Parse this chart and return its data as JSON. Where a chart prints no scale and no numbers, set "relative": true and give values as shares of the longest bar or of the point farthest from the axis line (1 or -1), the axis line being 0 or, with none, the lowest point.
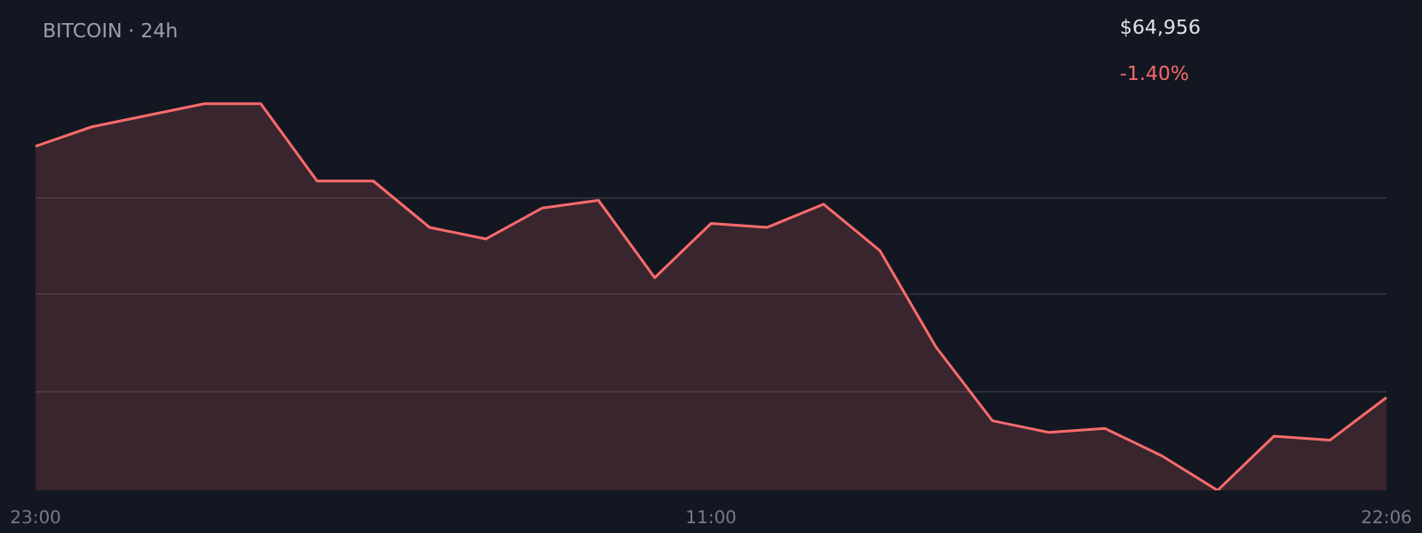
{
  "chart_data": {
    "type": "area",
    "title": "BITCOIN · 24h",
    "annotations": [
      "$64,956",
      "-1.40%"
    ],
    "relative": true,
    "grid": "y",
    "legend": false,
    "marker": "none",
    "categories": [
      "23:00",
      null,
      null,
      null,
      null,
      null,
      null,
      null,
      null,
      null,
      null,
      null,
      "11:00",
      null,
      null,
      null,
      null,
      null,
      null,
      null,
      null,
      null,
      null,
      null,
      "22:06"
    ],
    "series": [
      {
        "color": "#f76b6b",
        "values": [
          0.89,
          0.94,
          0.97,
          1,
          1,
          0.8,
          0.8,
          0.68,
          0.65,
          0.73,
          0.75,
          0.55,
          0.69,
          0.68,
          0.74,
          0.62,
          0.37,
          0.18,
          0.15,
          0.16,
          0.09,
          0,
          0.14,
          0.13,
          0.24
        ]
      }
    ]
  }
}
